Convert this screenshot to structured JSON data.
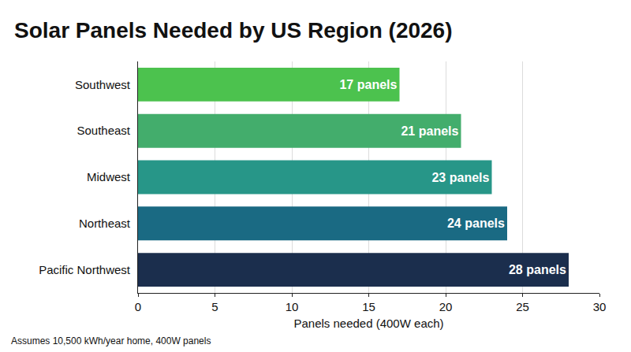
{
  "chart_data": {
    "type": "bar",
    "orientation": "horizontal",
    "title": "Solar Panels Needed by US Region (2026)",
    "x_label": "Panels needed (400W each)",
    "annotations": [
      "Assumes 10,500 kWh/year home, 400W panels"
    ],
    "categories": [
      "Southwest",
      "Southeast",
      "Midwest",
      "Northeast",
      "Pacific Northwest"
    ],
    "values": [
      17,
      21,
      23,
      24,
      28
    ],
    "value_labels": [
      "17 panels",
      "21 panels",
      "23 panels",
      "24 panels",
      "28 panels"
    ],
    "colors": [
      "#4cc24e",
      "#43ad6c",
      "#279688",
      "#1a6a83",
      "#1b2e4d"
    ],
    "xlim": [
      0,
      30
    ],
    "xticks": [
      0,
      5,
      10,
      15,
      20,
      25,
      30
    ],
    "data_labels": true,
    "grid": true
  }
}
